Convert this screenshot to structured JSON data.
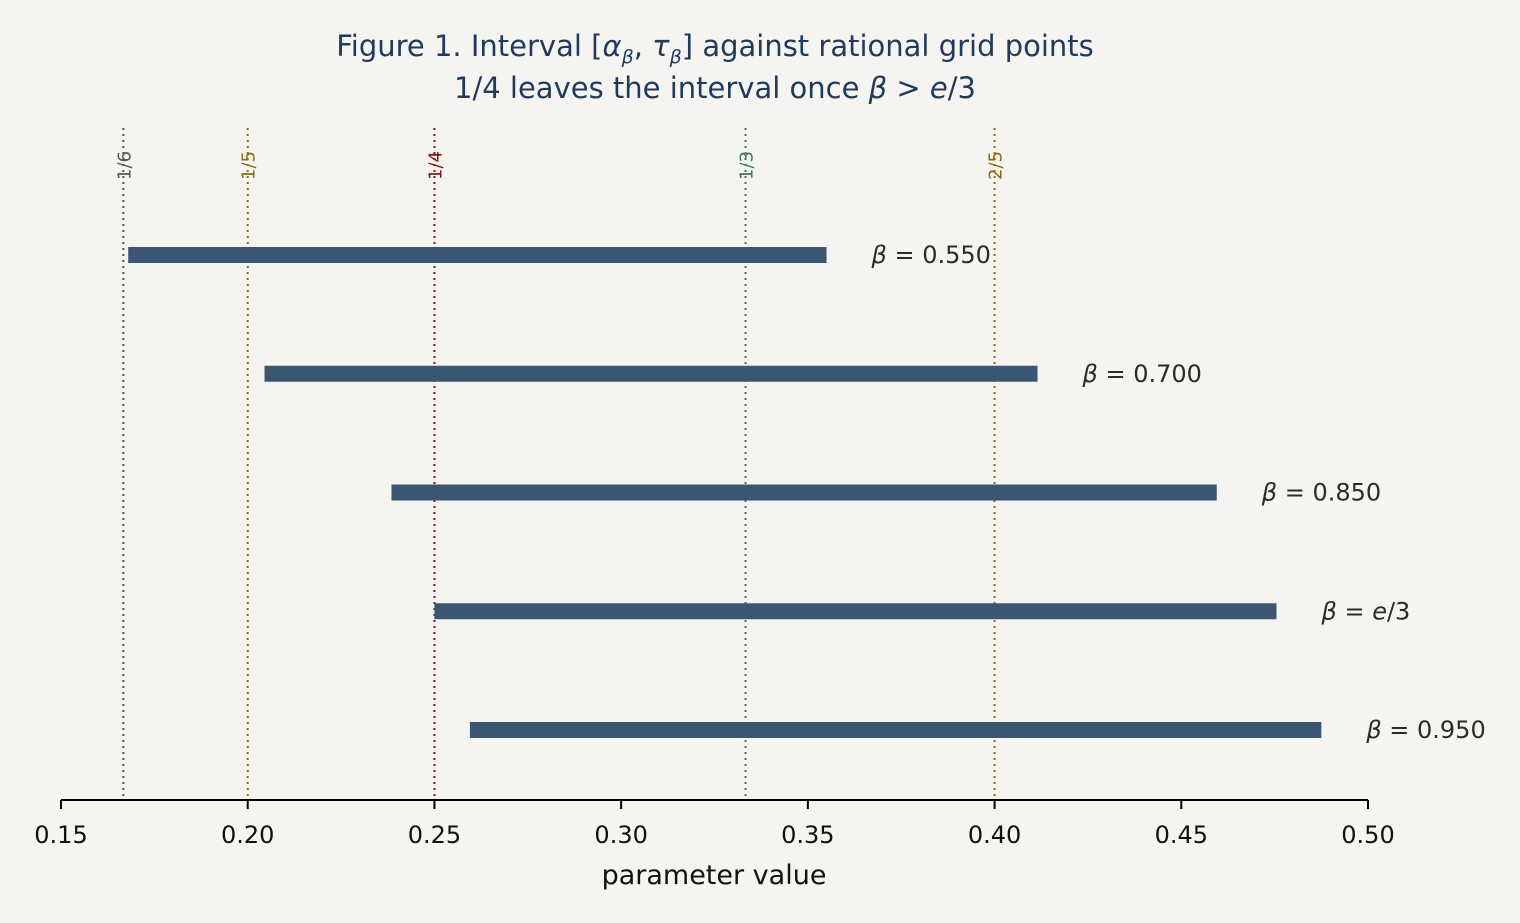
{
  "chart_data": {
    "type": "interval",
    "title": "Figure 1. Interval [αβ, τβ] against rational grid points",
    "subtitle": "1/4 leaves the interval once β > e/3",
    "title_parts": {
      "t1": "Figure 1. Interval [",
      "alpha": "α",
      "sub1": "β",
      "comma": ", ",
      "tau": "τ",
      "sub2": "β",
      "t2": "] against rational grid points"
    },
    "subtitle_parts": {
      "s1": "1/4 leaves the interval once ",
      "beta": "β",
      "gt": " > ",
      "e": "e",
      "s2": "/3"
    },
    "xlabel": "parameter value",
    "xlim": [
      0.15,
      0.5
    ],
    "xticks": [
      {
        "value": 0.15,
        "label": "0.15"
      },
      {
        "value": 0.2,
        "label": "0.20"
      },
      {
        "value": 0.25,
        "label": "0.25"
      },
      {
        "value": 0.3,
        "label": "0.30"
      },
      {
        "value": 0.35,
        "label": "0.35"
      },
      {
        "value": 0.4,
        "label": "0.40"
      },
      {
        "value": 0.45,
        "label": "0.45"
      },
      {
        "value": 0.5,
        "label": "0.50"
      }
    ],
    "grid": false,
    "bar_color": "#3b5673",
    "reference_lines": [
      {
        "label": "1/6",
        "value": 0.1667,
        "color": "#555555"
      },
      {
        "label": "1/5",
        "value": 0.2,
        "color": "#8a6a12"
      },
      {
        "label": "1/4",
        "value": 0.25,
        "color": "#7a1a1a"
      },
      {
        "label": "1/3",
        "value": 0.3333,
        "color": "#3f7a5a"
      },
      {
        "label": "2/5",
        "value": 0.4,
        "color": "#8a6a12"
      }
    ],
    "intervals": [
      {
        "beta_label": "0.550",
        "beta_italic": false,
        "start": 0.168,
        "end": 0.355
      },
      {
        "beta_label": "0.700",
        "beta_italic": false,
        "start": 0.2045,
        "end": 0.4115
      },
      {
        "beta_label": "0.850",
        "beta_italic": false,
        "start": 0.2385,
        "end": 0.4595
      },
      {
        "beta_label": "e/3",
        "beta_italic": true,
        "start": 0.25,
        "end": 0.4755
      },
      {
        "beta_label": "0.950",
        "beta_italic": false,
        "start": 0.2595,
        "end": 0.4875
      }
    ],
    "beta_prefix": "β",
    "beta_eq": " = "
  }
}
